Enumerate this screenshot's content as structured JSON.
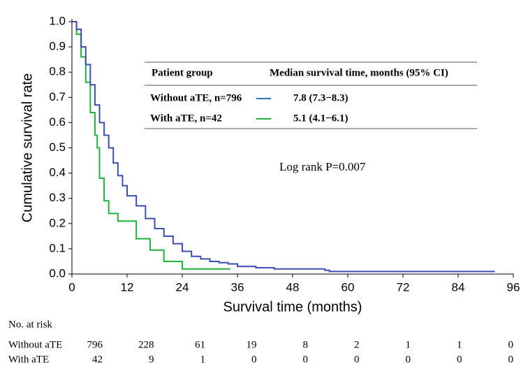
{
  "chart_data": {
    "type": "step",
    "x_label": "Survival time (months)",
    "y_label": "Cumulative survival rate",
    "xlim": [
      0,
      96
    ],
    "xticks": [
      0,
      12,
      24,
      36,
      48,
      60,
      72,
      84,
      96
    ],
    "ylim": [
      0,
      1.0
    ],
    "yticks": [
      {
        "value": 0,
        "label": "0.0"
      },
      0.1,
      0.2,
      0.3,
      0.4,
      0.5,
      0.6,
      0.7,
      0.8,
      0.9,
      {
        "value": 1,
        "label": "1.0"
      }
    ],
    "series": [
      {
        "name": "Without aTE, n=796",
        "color": "#3a4fb0",
        "legend_color": "#2e75b6",
        "median": "7.8 (7.3−8.3)",
        "x": [
          0,
          1,
          2,
          3,
          4,
          5,
          6,
          7,
          8,
          9,
          10,
          11,
          12,
          14,
          16,
          18,
          20,
          22,
          24,
          26,
          28,
          30,
          32,
          34,
          36,
          40,
          44,
          55,
          56,
          92
        ],
        "values": [
          1.0,
          0.97,
          0.9,
          0.83,
          0.75,
          0.67,
          0.6,
          0.55,
          0.5,
          0.44,
          0.39,
          0.35,
          0.31,
          0.27,
          0.22,
          0.18,
          0.15,
          0.12,
          0.09,
          0.07,
          0.06,
          0.05,
          0.045,
          0.04,
          0.03,
          0.025,
          0.02,
          0.015,
          0.01,
          0.01
        ]
      },
      {
        "name": "With aTE, n=42",
        "color": "#1db33a",
        "legend_color": "#1db33a",
        "median": "5.1 (4.1−6.1)",
        "x": [
          0,
          1,
          2,
          3,
          4,
          5,
          5.5,
          6,
          7,
          8,
          10,
          14,
          17,
          20,
          24,
          34.5
        ],
        "values": [
          1.0,
          0.95,
          0.86,
          0.76,
          0.64,
          0.55,
          0.5,
          0.38,
          0.29,
          0.24,
          0.21,
          0.14,
          0.095,
          0.05,
          0.02,
          0.02
        ]
      }
    ],
    "legend_header": [
      "Patient group",
      "Median survival time, months (95% CI)"
    ],
    "annotation": "Log rank P=0.007",
    "risk_table": {
      "title": "No. at risk",
      "rows": [
        {
          "label": "Without aTE",
          "values": [
            "796",
            "228",
            "61",
            "19",
            "8",
            "2",
            "1",
            "1",
            "0"
          ]
        },
        {
          "label": "With aTE",
          "values": [
            "42",
            "9",
            "1",
            "0",
            "0",
            "0",
            "0",
            "0",
            "0"
          ]
        }
      ]
    }
  }
}
